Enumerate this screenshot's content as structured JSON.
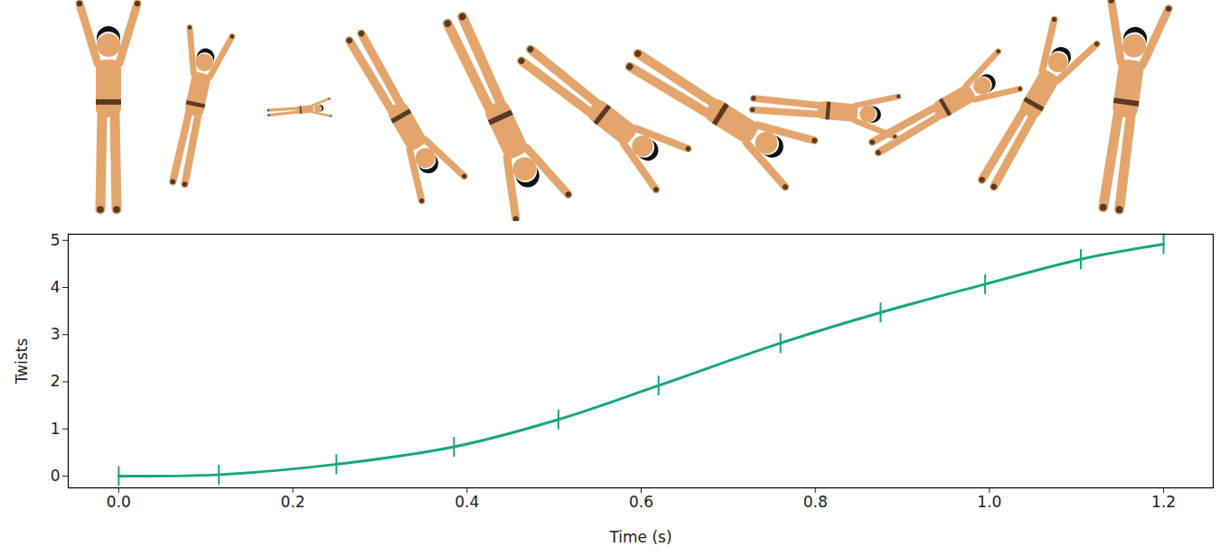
{
  "chart_data": {
    "type": "line",
    "x": [
      0.0,
      0.115,
      0.25,
      0.385,
      0.505,
      0.62,
      0.76,
      0.875,
      0.995,
      1.105,
      1.2
    ],
    "series": [
      {
        "name": "Twists",
        "color": "#17a77e",
        "marker": "vline",
        "line_style": "solid",
        "values": [
          0.0,
          0.03,
          0.25,
          0.62,
          1.2,
          1.92,
          2.82,
          3.47,
          4.07,
          4.6,
          4.92
        ]
      }
    ],
    "xlabel": "Time (s)",
    "ylabel": "Twists",
    "xlim": [
      -0.058,
      1.257
    ],
    "ylim": [
      -0.25,
      5.13
    ],
    "xticks": [
      {
        "value": 0,
        "label": "0.0"
      },
      {
        "value": 0.2,
        "label": "0.2"
      },
      {
        "value": 0.4,
        "label": "0.4"
      },
      {
        "value": 0.6,
        "label": "0.6"
      },
      {
        "value": 0.8,
        "label": "0.8"
      },
      {
        "value": 1.0,
        "label": "1.0"
      },
      {
        "value": 1.2,
        "label": "1.2"
      }
    ],
    "yticks": [
      0,
      1,
      2,
      3,
      4,
      5
    ],
    "grid": false
  }
}
